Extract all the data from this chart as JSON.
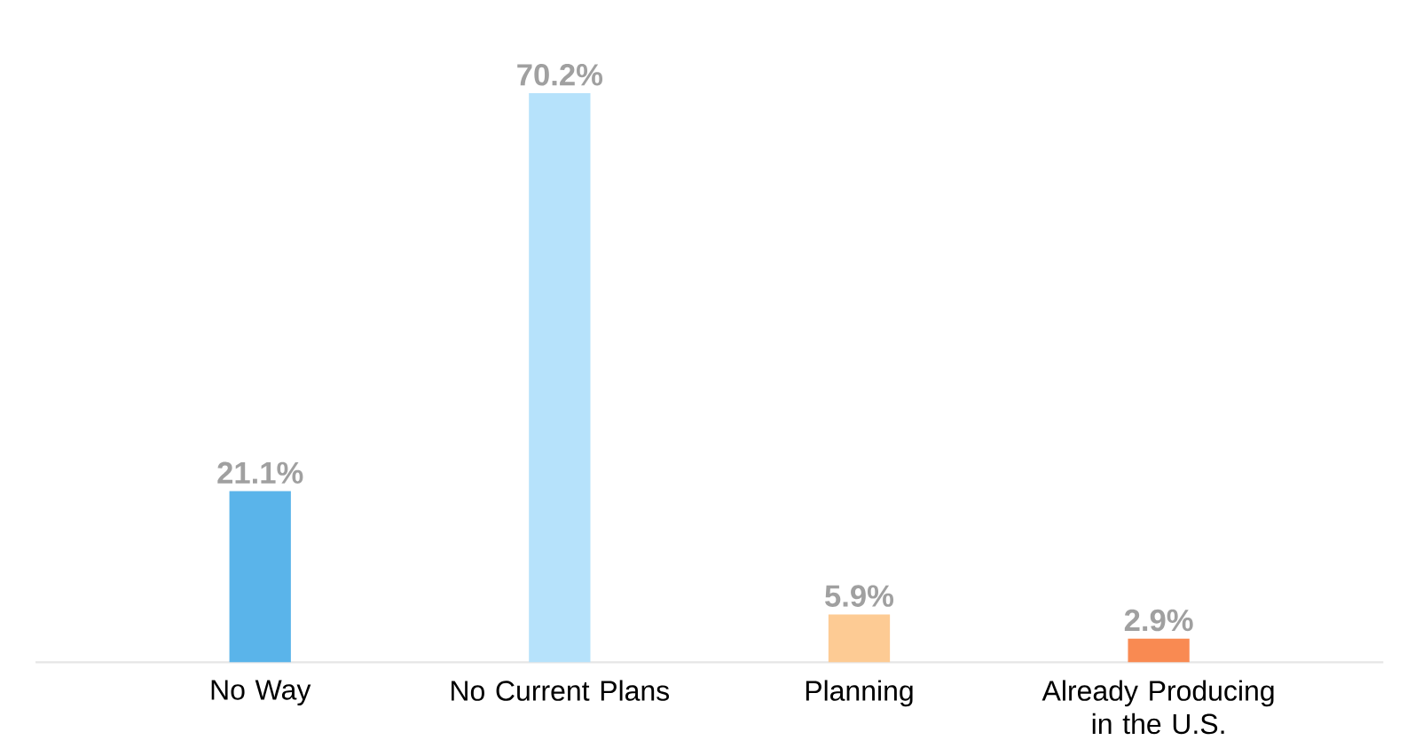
{
  "chart_data": {
    "type": "bar",
    "categories": [
      "No Way",
      "No Current Plans",
      "Planning",
      "Already Producing in the U.S."
    ],
    "values": [
      21.1,
      70.2,
      5.9,
      2.9
    ],
    "value_labels": [
      "21.1%",
      "70.2%",
      "5.9%",
      "2.9%"
    ],
    "colors": [
      "#5ab4ea",
      "#b6e2fb",
      "#fdcb94",
      "#f98a52"
    ],
    "tick_labels": "x"
  }
}
